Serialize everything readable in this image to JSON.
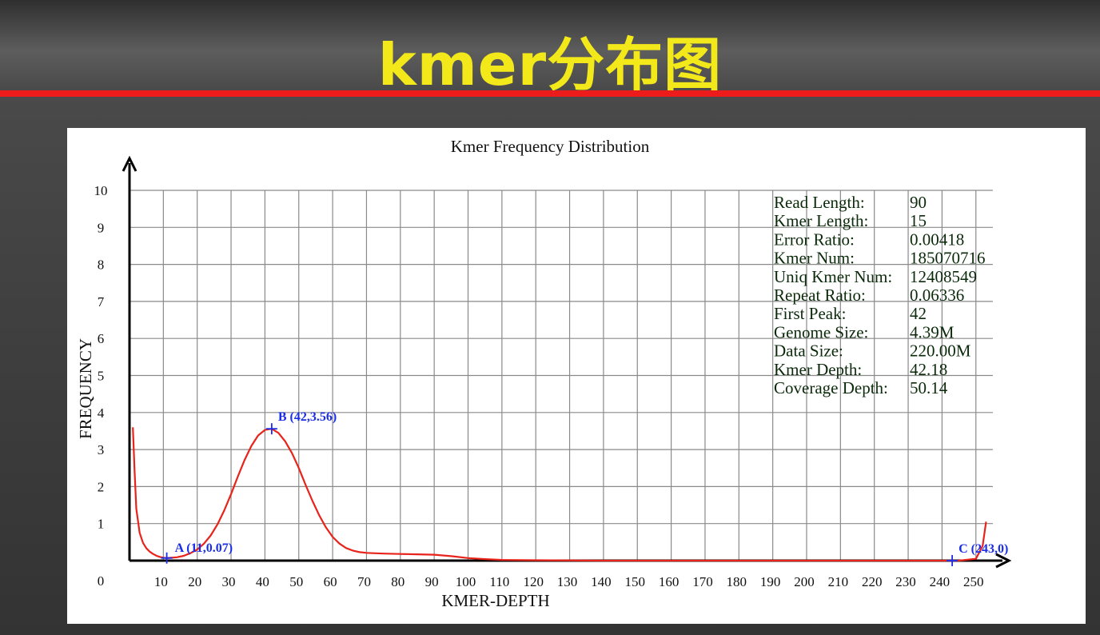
{
  "page": {
    "title": "kmer分布图"
  },
  "colors": {
    "title": "#f3e81a",
    "accent_line": "#ec1c1c",
    "curve": "#e8231a",
    "markers": "#1a2ee8",
    "info_text": "#0a2a0a"
  },
  "chart_data": {
    "type": "line",
    "title": "Kmer Frequency Distribution",
    "xlabel": "KMER-DEPTH",
    "ylabel": "FREQUENCY",
    "xlim": [
      0,
      255
    ],
    "ylim": [
      0,
      10
    ],
    "x_ticks": [
      10,
      20,
      30,
      40,
      50,
      60,
      70,
      80,
      90,
      100,
      110,
      120,
      130,
      140,
      150,
      160,
      170,
      180,
      190,
      200,
      210,
      220,
      230,
      240,
      250
    ],
    "y_ticks": [
      1,
      2,
      3,
      4,
      5,
      6,
      7,
      8,
      9,
      10
    ],
    "origin_label": "0",
    "grid": true,
    "series": [
      {
        "x": [
          1,
          1.5,
          2,
          3,
          4,
          5,
          6,
          7,
          8,
          9,
          10,
          11,
          12,
          14,
          16,
          18,
          20,
          22,
          24,
          26,
          28,
          30,
          32,
          34,
          36,
          38,
          40,
          42,
          44,
          46,
          48,
          50,
          52,
          54,
          56,
          58,
          60,
          62,
          64,
          66,
          68,
          70,
          72,
          75,
          80,
          85,
          90,
          95,
          100,
          105,
          110,
          120,
          140,
          160,
          180,
          200,
          220,
          240,
          245,
          250,
          252,
          253
        ],
        "y": [
          3.6,
          2.4,
          1.4,
          0.75,
          0.48,
          0.33,
          0.24,
          0.18,
          0.13,
          0.1,
          0.08,
          0.07,
          0.075,
          0.09,
          0.13,
          0.2,
          0.3,
          0.46,
          0.68,
          0.98,
          1.36,
          1.8,
          2.27,
          2.72,
          3.1,
          3.38,
          3.53,
          3.56,
          3.45,
          3.22,
          2.9,
          2.5,
          2.05,
          1.62,
          1.23,
          0.9,
          0.64,
          0.46,
          0.34,
          0.27,
          0.23,
          0.21,
          0.2,
          0.19,
          0.18,
          0.17,
          0.16,
          0.12,
          0.07,
          0.04,
          0.02,
          0.01,
          0.0,
          0.0,
          0.0,
          0.0,
          0.0,
          0.0,
          0.0,
          0.05,
          0.4,
          1.05
        ]
      }
    ],
    "annotations": [
      {
        "label": "A (11,0.07)",
        "x": 11,
        "y": 0.07
      },
      {
        "label": "B (42,3.56)",
        "x": 42,
        "y": 3.56
      },
      {
        "label": "C (243,0)",
        "x": 243,
        "y": 0
      }
    ],
    "info_table": [
      {
        "key": "Read Length:",
        "value": "90"
      },
      {
        "key": "Kmer Length:",
        "value": "15"
      },
      {
        "key": "Error Ratio:",
        "value": "0.00418"
      },
      {
        "key": "Kmer Num:",
        "value": "185070716"
      },
      {
        "key": "Uniq Kmer Num:",
        "value": "12408549"
      },
      {
        "key": "Repeat Ratio:",
        "value": "0.06336"
      },
      {
        "key": "First Peak:",
        "value": "42"
      },
      {
        "key": "Genome Size:",
        "value": "4.39M"
      },
      {
        "key": "Data Size:",
        "value": "220.00M"
      },
      {
        "key": "Kmer Depth:",
        "value": "42.18"
      },
      {
        "key": "Coverage Depth:",
        "value": "50.14"
      }
    ]
  }
}
